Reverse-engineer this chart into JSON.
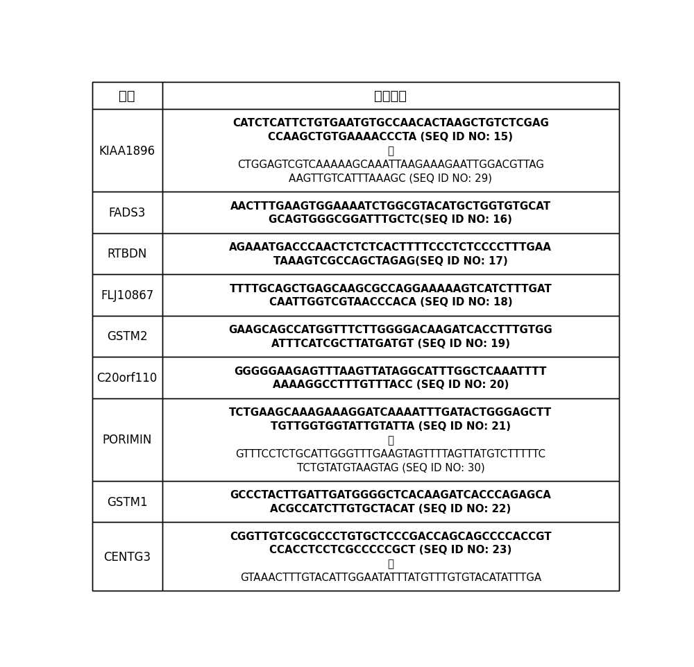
{
  "col1_header": "基因",
  "col2_header": "探针序列",
  "rows": [
    {
      "gene": "KIAA1896",
      "lines": [
        {
          "text": "CATCTCATTCTGTGAATGTGCCAACACTAAGCTGTCTCGAG",
          "bold": true
        },
        {
          "text": "CCAAGCTGTGAAAACCCTA (SEQ ID NO: 15)",
          "bold": true
        },
        {
          "text": "或",
          "bold": false,
          "chinese": true
        },
        {
          "text": "CTGGAGTCGTCAAAAAGCAAATTAAGAAAGAATTGGACGTTAG",
          "bold": false
        },
        {
          "text": "AAGTTGTCATTTAAAGC (SEQ ID NO: 29)",
          "bold": false
        }
      ]
    },
    {
      "gene": "FADS3",
      "lines": [
        {
          "text": "AACTTTGAAGTGGAAAATCTGGCGTACATGCTGGTGTGCAT",
          "bold": true
        },
        {
          "text": "GCAGTGGGCGGATTTGCTC(SEQ ID NO: 16)",
          "bold": true
        }
      ]
    },
    {
      "gene": "RTBDN",
      "lines": [
        {
          "text": "AGAAATGACCCAACTCTCTCACTTTTCCCTCTCCCCTTTGAA",
          "bold": true
        },
        {
          "text": "TAAAGTCGCCAGCTAGAG(SEQ ID NO: 17)",
          "bold": true
        }
      ]
    },
    {
      "gene": "FLJ10867",
      "lines": [
        {
          "text": "TTTTGCAGCTGAGCAAGCGCCAGGAAAAAGTCATCTTTGAT",
          "bold": true
        },
        {
          "text": "CAATTGGTCGTAACCCACA (SEQ ID NO: 18)",
          "bold": true
        }
      ]
    },
    {
      "gene": "GSTM2",
      "lines": [
        {
          "text": "GAAGCAGCCATGGTTTCTTGGGGACAAGATCACCTTTGTGG",
          "bold": true
        },
        {
          "text": "ATTTCATCGCTTATGATGT (SEQ ID NO: 19)",
          "bold": true
        }
      ]
    },
    {
      "gene": "C20orf110",
      "lines": [
        {
          "text": "GGGGGAAGAGTTTAAGTTATAGGCATTTGGCTCAAATTTT",
          "bold": true
        },
        {
          "text": "AAAAGGCCTTTGTTTACC (SEQ ID NO: 20)",
          "bold": true
        }
      ]
    },
    {
      "gene": "PORIMIN",
      "lines": [
        {
          "text": "TCTGAAGCAAAGAAAGGATCAAAATTTGATACTGGGAGCTT",
          "bold": true
        },
        {
          "text": "TGTTGGTGGTATTGTATTA (SEQ ID NO: 21)",
          "bold": true
        },
        {
          "text": "或",
          "bold": false,
          "chinese": true
        },
        {
          "text": "GTTTCCTCTGCATTGGGTTTGAAGTAGTTTTAGTTATGTCTTTTTC",
          "bold": false
        },
        {
          "text": "TCTGTATGTAAGTAG (SEQ ID NO: 30)",
          "bold": false
        }
      ]
    },
    {
      "gene": "GSTM1",
      "lines": [
        {
          "text": "GCCCTACTTGATTGATGGGGCTCACAAGATCACCCAGAGCA",
          "bold": true
        },
        {
          "text": "ACGCCATCTTGTGCTACAT (SEQ ID NO: 22)",
          "bold": true
        }
      ]
    },
    {
      "gene": "CENTG3",
      "lines": [
        {
          "text": "CGGTTGTCGCGCCCTGTGCTCCCGACCAGCAGCCCCACCGT",
          "bold": true
        },
        {
          "text": "CCACCTCCTCGCCCCCGCT (SEQ ID NO: 23)",
          "bold": true
        },
        {
          "text": "或",
          "bold": false,
          "chinese": true
        },
        {
          "text": "GTAAACTTTGTACATTGGAATATTTATGTTTGTGTACATATTTGA",
          "bold": false
        }
      ]
    }
  ],
  "bg_color": "#ffffff",
  "border_color": "#000000",
  "text_color": "#000000",
  "header_fontsize": 14,
  "gene_fontsize": 12,
  "seq_fontsize": 10.8,
  "fig_width": 10.0,
  "fig_height": 9.62,
  "dpi": 100
}
